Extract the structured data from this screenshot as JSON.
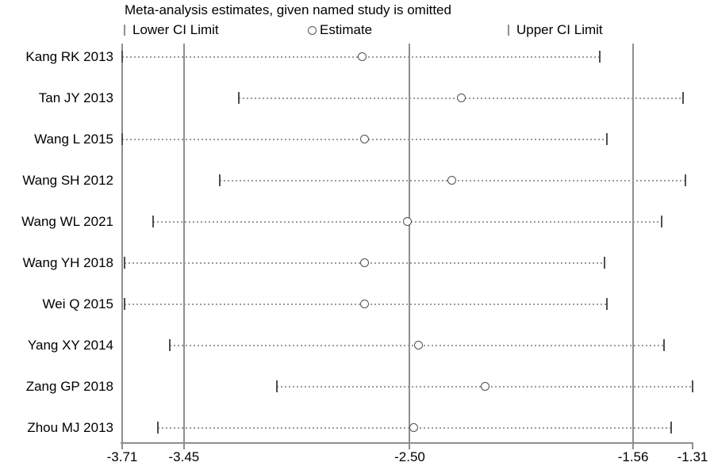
{
  "title": "Meta-analysis estimates, given named study is omitted",
  "legend": {
    "lower": "Lower CI Limit",
    "estimate": "Estimate",
    "upper": "Upper CI Limit"
  },
  "colors": {
    "frame_gray": "#8f8f8f",
    "dotted_gray": "#9a9a9a",
    "marker_dark": "#4f4f4f",
    "text": "#000000",
    "background": "#ffffff"
  },
  "chart_data": {
    "type": "scatter",
    "variant": "leave-one-out-sensitivity-plot",
    "title": "Meta-analysis estimates, given named study is omitted",
    "legend_entries": [
      "Lower CI Limit",
      "Estimate",
      "Upper CI Limit"
    ],
    "legend_position": "top",
    "grid": false,
    "x_axis": {
      "min": -3.71,
      "max": -1.31,
      "tick_values": [
        -3.71,
        -3.45,
        -2.5,
        -1.56,
        -1.31
      ],
      "tick_labels": [
        "-3.71",
        "-3.45",
        "-2.50",
        "-1.56",
        "-1.31"
      ],
      "reference_line_values": [
        -3.45,
        -2.5,
        -1.56
      ]
    },
    "studies": [
      {
        "label": "Kang RK 2013",
        "lower": -3.71,
        "estimate": -2.7,
        "upper": -1.7
      },
      {
        "label": "Tan JY 2013",
        "lower": -3.22,
        "estimate": -2.28,
        "upper": -1.35
      },
      {
        "label": "Wang L 2015",
        "lower": -3.71,
        "estimate": -2.69,
        "upper": -1.67
      },
      {
        "label": "Wang SH 2012",
        "lower": -3.3,
        "estimate": -2.32,
        "upper": -1.34
      },
      {
        "label": "Wang WL 2021",
        "lower": -3.58,
        "estimate": -2.51,
        "upper": -1.44
      },
      {
        "label": "Wang YH 2018",
        "lower": -3.7,
        "estimate": -2.69,
        "upper": -1.68
      },
      {
        "label": "Wei Q 2015",
        "lower": -3.7,
        "estimate": -2.69,
        "upper": -1.67
      },
      {
        "label": "Yang XY 2014",
        "lower": -3.51,
        "estimate": -2.46,
        "upper": -1.43
      },
      {
        "label": "Zang GP 2018",
        "lower": -3.06,
        "estimate": -2.18,
        "upper": -1.31
      },
      {
        "label": "Zhou MJ 2013",
        "lower": -3.56,
        "estimate": -2.48,
        "upper": -1.4
      }
    ]
  }
}
